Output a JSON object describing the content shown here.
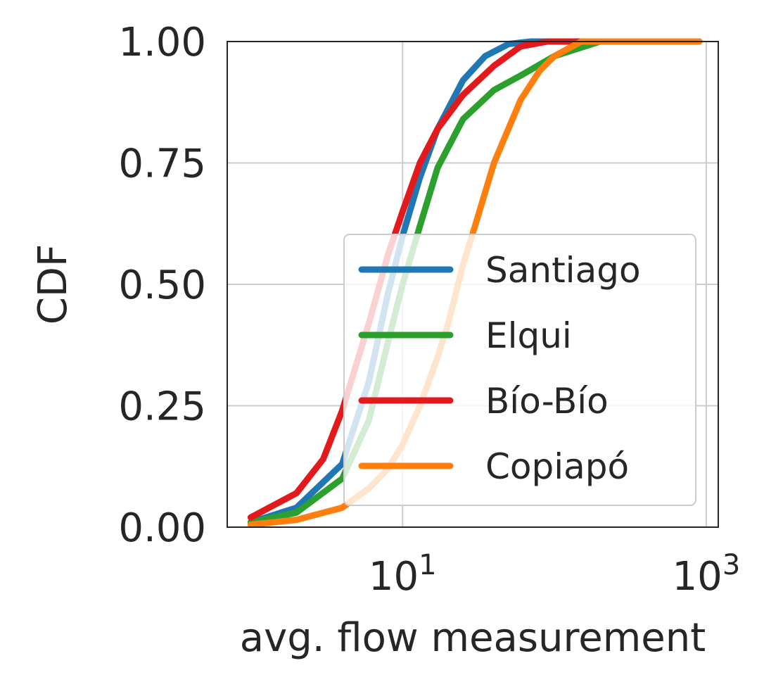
{
  "chart_data": {
    "type": "line",
    "title": "",
    "xlabel": "avg. flow measurement",
    "ylabel": "CDF",
    "xscale": "log",
    "xlim": [
      0.7,
      1200
    ],
    "ylim": [
      0,
      1
    ],
    "x_ticks": [
      {
        "value": 10,
        "base": "10",
        "exp": "1"
      },
      {
        "value": 1000,
        "base": "10",
        "exp": "3"
      }
    ],
    "y_ticks": [
      {
        "value": 0.0,
        "label": "0.00"
      },
      {
        "value": 0.25,
        "label": "0.25"
      },
      {
        "value": 0.5,
        "label": "0.50"
      },
      {
        "value": 0.75,
        "label": "0.75"
      },
      {
        "value": 1.0,
        "label": "1.00"
      }
    ],
    "grid": true,
    "legend_position": "lower-right",
    "series": [
      {
        "name": "Santiago",
        "color": "#1f77b4",
        "points": [
          [
            1.0,
            0.01
          ],
          [
            2.0,
            0.04
          ],
          [
            4.0,
            0.13
          ],
          [
            6.0,
            0.3
          ],
          [
            8.0,
            0.48
          ],
          [
            10.0,
            0.6
          ],
          [
            13.0,
            0.72
          ],
          [
            17.0,
            0.82
          ],
          [
            25.0,
            0.92
          ],
          [
            35.0,
            0.97
          ],
          [
            50.0,
            0.995
          ],
          [
            70.0,
            1.0
          ],
          [
            900.0,
            1.0
          ]
        ]
      },
      {
        "name": "Elqui",
        "color": "#2ca02c",
        "points": [
          [
            1.0,
            0.01
          ],
          [
            2.0,
            0.03
          ],
          [
            4.0,
            0.1
          ],
          [
            6.0,
            0.22
          ],
          [
            8.0,
            0.38
          ],
          [
            10.0,
            0.5
          ],
          [
            13.0,
            0.62
          ],
          [
            17.0,
            0.74
          ],
          [
            25.0,
            0.84
          ],
          [
            40.0,
            0.9
          ],
          [
            60.0,
            0.93
          ],
          [
            100.0,
            0.97
          ],
          [
            200.0,
            1.0
          ],
          [
            900.0,
            1.0
          ]
        ]
      },
      {
        "name": "Bío-Bío",
        "color": "#e31a1c",
        "points": [
          [
            1.0,
            0.02
          ],
          [
            2.0,
            0.07
          ],
          [
            3.0,
            0.14
          ],
          [
            4.0,
            0.24
          ],
          [
            6.0,
            0.42
          ],
          [
            8.0,
            0.56
          ],
          [
            10.0,
            0.65
          ],
          [
            13.0,
            0.75
          ],
          [
            17.0,
            0.82
          ],
          [
            25.0,
            0.89
          ],
          [
            40.0,
            0.95
          ],
          [
            60.0,
            0.99
          ],
          [
            90.0,
            1.0
          ],
          [
            900.0,
            1.0
          ]
        ]
      },
      {
        "name": "Copiapó",
        "color": "#ff7f0e",
        "points": [
          [
            1.0,
            0.005
          ],
          [
            2.0,
            0.015
          ],
          [
            4.0,
            0.04
          ],
          [
            6.0,
            0.08
          ],
          [
            8.0,
            0.12
          ],
          [
            10.0,
            0.17
          ],
          [
            13.0,
            0.25
          ],
          [
            17.0,
            0.35
          ],
          [
            20.0,
            0.42
          ],
          [
            25.0,
            0.54
          ],
          [
            30.0,
            0.62
          ],
          [
            40.0,
            0.75
          ],
          [
            60.0,
            0.88
          ],
          [
            80.0,
            0.94
          ],
          [
            100.0,
            0.97
          ],
          [
            150.0,
            1.0
          ],
          [
            900.0,
            1.0
          ]
        ]
      }
    ]
  }
}
